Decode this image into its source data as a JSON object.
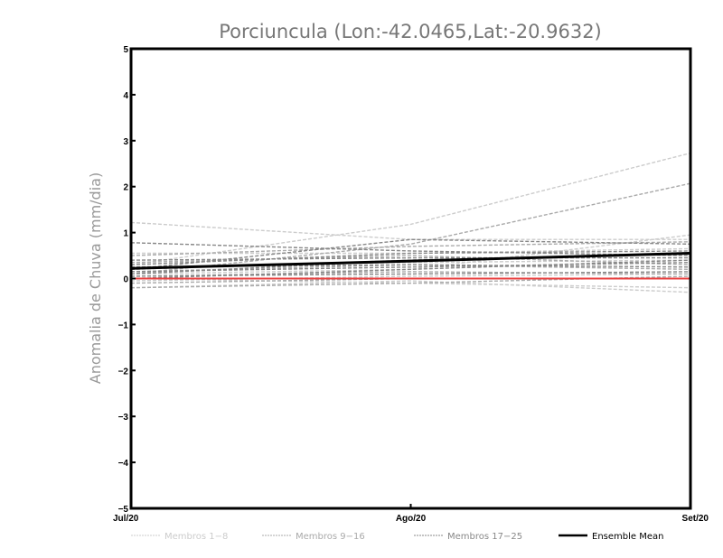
{
  "chart_data": {
    "type": "line",
    "title": "Porciuncula (Lon:-42.0465,Lat:-20.9632)",
    "xlabel": "",
    "ylabel": "Anomalia de Chuva (mm/dia)",
    "categories": [
      "Jul/20",
      "Ago/20",
      "Set/20"
    ],
    "ylim": [
      -5,
      5
    ],
    "yticks": [
      "5",
      "4",
      "3",
      "2",
      "1",
      "0",
      "-1",
      "-2",
      "-3",
      "-4",
      "-5"
    ],
    "legend_position": "bottom",
    "groups": [
      {
        "name": "Membros 1-8",
        "color": "#cccccc",
        "style": "dashed",
        "series": [
          [
            1.22,
            0.85,
            0.85
          ],
          [
            0.3,
            1.18,
            2.73
          ],
          [
            -0.2,
            -0.05,
            -0.3
          ],
          [
            0.55,
            0.55,
            0.65
          ],
          [
            0.1,
            0.2,
            0.95
          ],
          [
            0.0,
            -0.1,
            -0.2
          ],
          [
            0.25,
            0.35,
            0.4
          ],
          [
            -0.05,
            0.05,
            0.1
          ]
        ]
      },
      {
        "name": "Membros 9-16",
        "color": "#aaaaaa",
        "style": "dashed",
        "series": [
          [
            0.1,
            0.75,
            2.07
          ],
          [
            0.5,
            0.7,
            0.8
          ],
          [
            0.15,
            0.3,
            0.2
          ],
          [
            0.35,
            0.5,
            0.3
          ],
          [
            -0.1,
            0.0,
            0.0
          ],
          [
            0.05,
            0.15,
            0.1
          ],
          [
            0.2,
            0.4,
            0.55
          ],
          [
            -0.2,
            -0.1,
            0.05
          ]
        ]
      },
      {
        "name": "Membros 17-25",
        "color": "#888888",
        "style": "dashed",
        "series": [
          [
            0.78,
            0.6,
            0.5
          ],
          [
            0.2,
            0.85,
            0.75
          ],
          [
            0.3,
            0.55,
            0.6
          ],
          [
            0.15,
            0.25,
            0.35
          ],
          [
            0.4,
            0.45,
            0.45
          ],
          [
            0.05,
            0.1,
            0.15
          ],
          [
            0.25,
            0.3,
            0.25
          ],
          [
            0.0,
            0.2,
            0.4
          ],
          [
            0.1,
            0.4,
            0.55
          ]
        ]
      }
    ],
    "mean": {
      "name": "Ensemble Mean",
      "color": "#000000",
      "values": [
        0.22,
        0.38,
        0.55
      ]
    },
    "zero_line": {
      "color": "#e84040",
      "value": 0
    }
  }
}
